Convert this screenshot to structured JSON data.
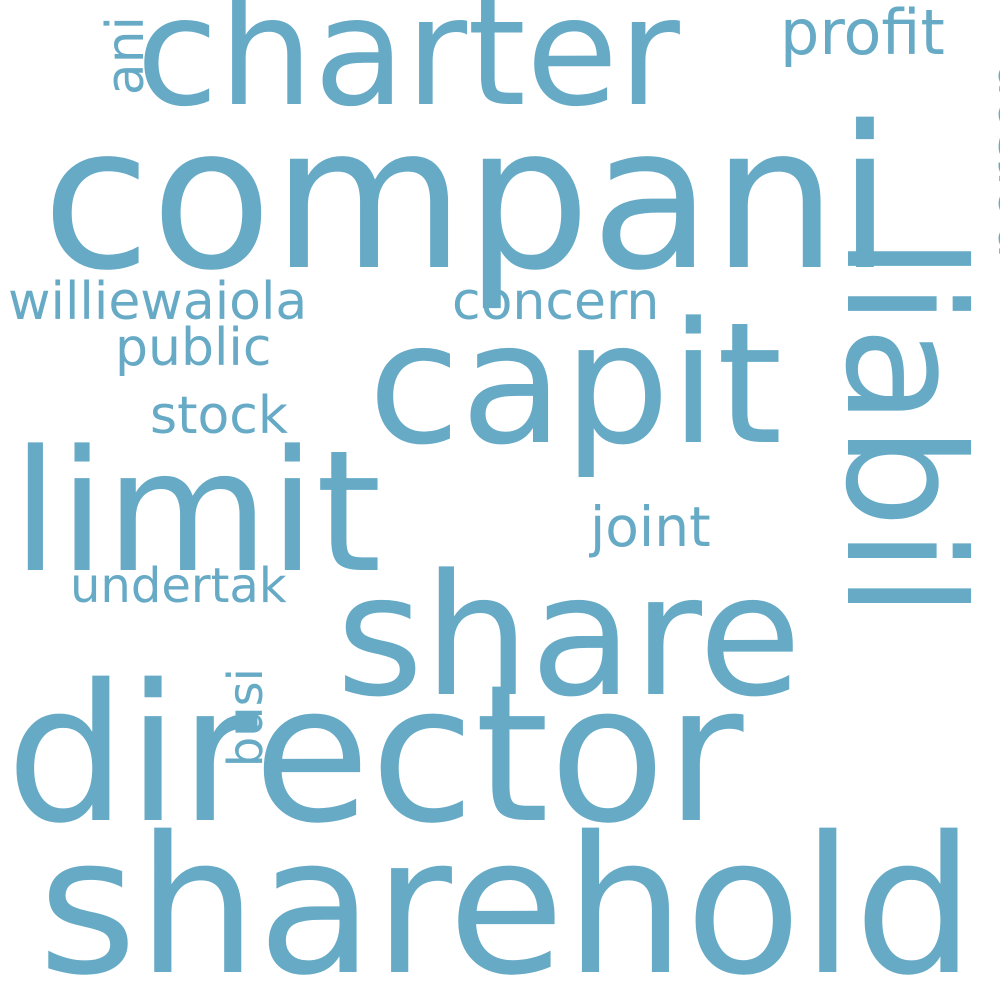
{
  "word_cloud": {
    "color": "#66aac6",
    "background": "#ffffff",
    "words": {
      "compani": "compani",
      "charter": "charter",
      "capit": "capit",
      "limit": "limit",
      "share": "share",
      "director": "director",
      "sharehold": "sharehold",
      "liabil": "liabil",
      "profit": "profit",
      "person": "person",
      "ani": "ani",
      "williewaiola": "williewaiola",
      "concern": "concern",
      "public": "public",
      "stock": "stock",
      "joint": "joint",
      "undertak": "undertak",
      "busi": "busi"
    }
  }
}
